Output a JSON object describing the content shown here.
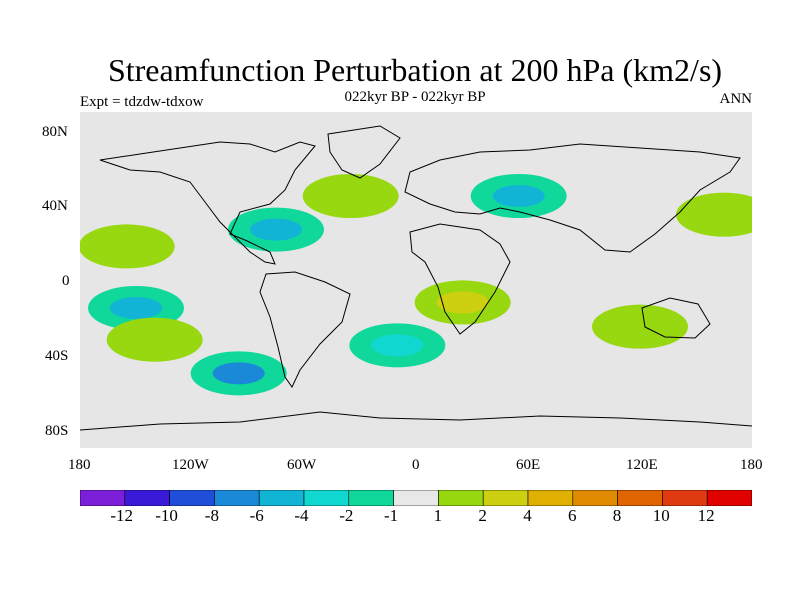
{
  "title": "Streamfunction Perturbation at 200 hPa (km2/s)",
  "subtitle": "022kyr BP - 022kyr BP",
  "left_note": "Expt = tdzdw-tdxow",
  "right_note": "ANN",
  "lat_ticks": [
    "80N",
    "40N",
    "0",
    "40S",
    "80S"
  ],
  "lon_ticks": [
    "180",
    "120W",
    "60W",
    "0",
    "60E",
    "120E",
    "180"
  ],
  "colorbar": {
    "colors": [
      "#7b1fd8",
      "#3a1ad8",
      "#1f4fd8",
      "#1a8ad8",
      "#12b4d6",
      "#10d8d0",
      "#10d89a",
      "#e8e8e8",
      "#98d810",
      "#cdd010",
      "#e0b000",
      "#e08a00",
      "#e06400",
      "#e03a10",
      "#e00000"
    ],
    "labels": [
      "-12",
      "-10",
      "-8",
      "-6",
      "-4",
      "-2",
      "-1",
      "1",
      "2",
      "4",
      "6",
      "8",
      "10",
      "12"
    ]
  },
  "chart_data": {
    "type": "filled-contour-map",
    "title": "Streamfunction Perturbation at 200 hPa (km2/s)",
    "subtitle": "022kyr BP - 022kyr BP",
    "experiment": "Expt = tdzdw-tdxow",
    "season": "ANN",
    "xlim": [
      -180,
      180
    ],
    "ylim": [
      -90,
      90
    ],
    "contour_levels": [
      -12,
      -10,
      -8,
      -6,
      -4,
      -2,
      -1,
      1,
      2,
      4,
      6,
      8,
      10,
      12
    ],
    "anomalies": [
      {
        "lon": -75,
        "lat": 27,
        "value": -4
      },
      {
        "lon": -150,
        "lat": -15,
        "value": -4
      },
      {
        "lon": -95,
        "lat": -50,
        "value": -6
      },
      {
        "lon": 55,
        "lat": 45,
        "value": -4
      },
      {
        "lon": -10,
        "lat": -35,
        "value": -2
      },
      {
        "lon": -155,
        "lat": 18,
        "value": 2
      },
      {
        "lon": -140,
        "lat": -32,
        "value": 2
      },
      {
        "lon": -35,
        "lat": 45,
        "value": 2
      },
      {
        "lon": 25,
        "lat": -12,
        "value": 3
      },
      {
        "lon": 165,
        "lat": 35,
        "value": 2
      },
      {
        "lon": 120,
        "lat": -25,
        "value": 2
      }
    ]
  }
}
